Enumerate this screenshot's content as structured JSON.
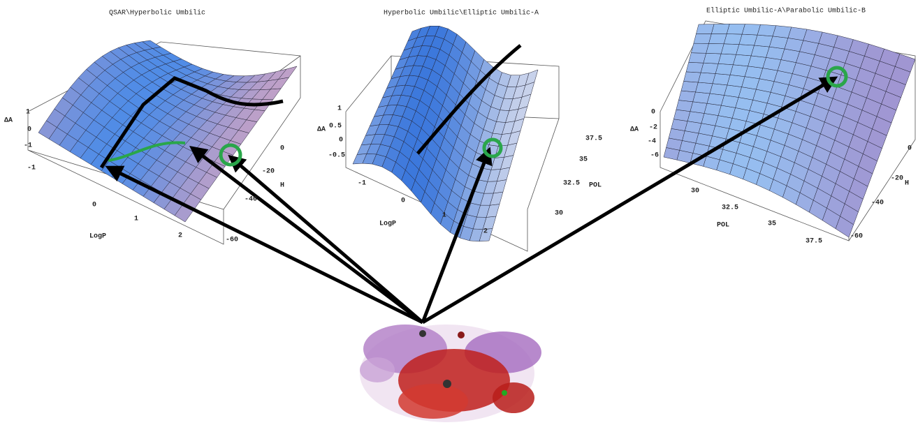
{
  "panels": [
    {
      "title": "QSAR\\Hyperbolic Umbilic",
      "z_label": "ΔA",
      "x_label": "LogP",
      "y_label": "H",
      "z_ticks": [
        "1",
        "0",
        "-1"
      ],
      "x_ticks": [
        "-1",
        "0",
        "1",
        "2"
      ],
      "y_ticks": [
        "0",
        "-20",
        "-40",
        "-60"
      ]
    },
    {
      "title": "Hyperbolic Umbilic\\Elliptic Umbilic-A",
      "z_label": "ΔA",
      "x_label": "LogP",
      "y_label": "POL",
      "z_ticks": [
        "1",
        "0.5",
        "0",
        "-0.5"
      ],
      "x_ticks": [
        "-1",
        "0",
        "1",
        "2"
      ],
      "y_ticks": [
        "37.5",
        "35",
        "32.5",
        "30"
      ]
    },
    {
      "title": "Elliptic Umbilic-A\\Parabolic Umbilic-B",
      "z_label": "ΔA",
      "x_label": "POL",
      "y_label": "H",
      "z_ticks": [
        "0",
        "-2",
        "-4",
        "-6"
      ],
      "x_ticks": [
        "30",
        "32.5",
        "35",
        "37.5"
      ],
      "y_ticks": [
        "0",
        "-20",
        "-40",
        "-60"
      ]
    }
  ]
}
